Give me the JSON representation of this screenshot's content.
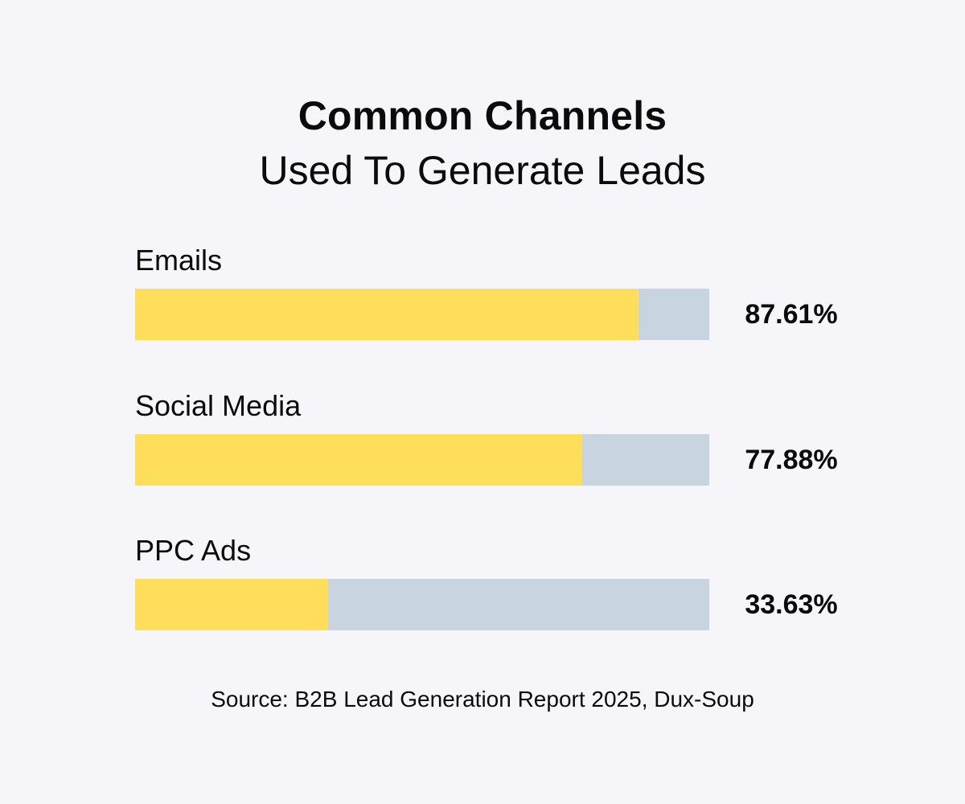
{
  "header": {
    "title": "Common Channels",
    "subtitle": "Used To Generate Leads"
  },
  "chart_data": {
    "type": "bar",
    "orientation": "horizontal",
    "categories": [
      "Emails",
      "Social Media",
      "PPC Ads"
    ],
    "values": [
      87.61,
      77.88,
      33.63
    ],
    "value_labels": [
      "87.61%",
      "77.88%",
      "33.63%"
    ],
    "xlim": [
      0,
      100
    ],
    "grid": false,
    "legend": "none",
    "colors": {
      "fill": "#ffde5c",
      "track": "#c8d5e1"
    }
  },
  "footer": {
    "source": "Source: B2B Lead Generation Report 2025, Dux-Soup"
  }
}
